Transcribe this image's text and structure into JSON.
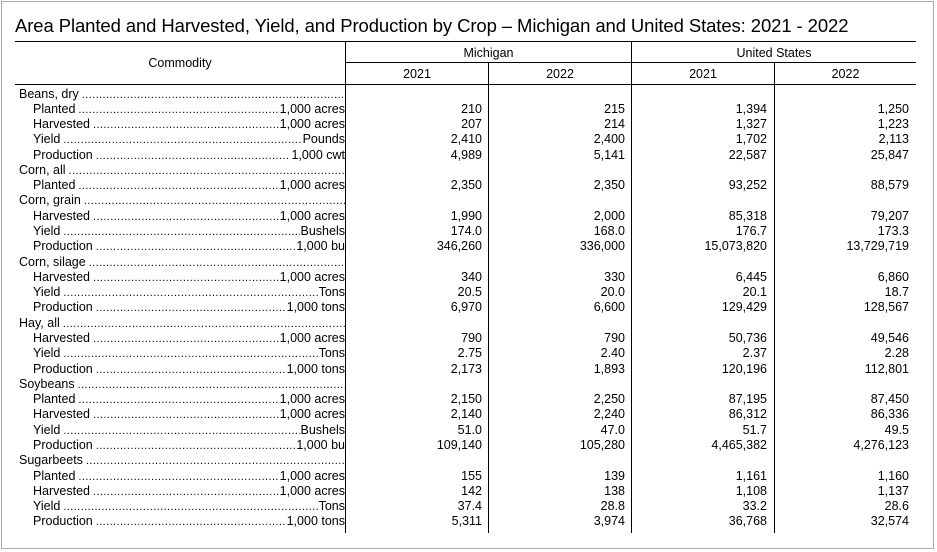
{
  "title": "Area Planted and Harvested, Yield, and Production by Crop –  Michigan and United States: 2021 - 2022",
  "header": {
    "commodity": "Commodity",
    "groups": [
      "Michigan",
      "United States"
    ],
    "years": [
      "2021",
      "2022",
      "2021",
      "2022"
    ]
  },
  "rows": [
    {
      "type": "group",
      "label": "Beans, dry"
    },
    {
      "type": "item",
      "label": "Planted",
      "unit": "1,000 acres",
      "values": [
        "210",
        "215",
        "1,394",
        "1,250"
      ]
    },
    {
      "type": "item",
      "label": "Harvested",
      "unit": "1,000 acres",
      "values": [
        "207",
        "214",
        "1,327",
        "1,223"
      ]
    },
    {
      "type": "item",
      "label": "Yield",
      "unit": "Pounds",
      "values": [
        "2,410",
        "2,400",
        "1,702",
        "2,113"
      ]
    },
    {
      "type": "item",
      "label": "Production",
      "unit": "1,000 cwt",
      "values": [
        "4,989",
        "5,141",
        "22,587",
        "25,847"
      ]
    },
    {
      "type": "group",
      "label": "Corn, all"
    },
    {
      "type": "item",
      "label": "Planted",
      "unit": "1,000 acres",
      "values": [
        "2,350",
        "2,350",
        "93,252",
        "88,579"
      ]
    },
    {
      "type": "group",
      "label": "Corn, grain"
    },
    {
      "type": "item",
      "label": "Harvested",
      "unit": "1,000 acres",
      "values": [
        "1,990",
        "2,000",
        "85,318",
        "79,207"
      ]
    },
    {
      "type": "item",
      "label": "Yield",
      "unit": "Bushels",
      "values": [
        "174.0",
        "168.0",
        "176.7",
        "173.3"
      ]
    },
    {
      "type": "item",
      "label": "Production",
      "unit": "1,000 bu",
      "values": [
        "346,260",
        "336,000",
        "15,073,820",
        "13,729,719"
      ]
    },
    {
      "type": "group",
      "label": "Corn, silage"
    },
    {
      "type": "item",
      "label": "Harvested",
      "unit": "1,000 acres",
      "values": [
        "340",
        "330",
        "6,445",
        "6,860"
      ]
    },
    {
      "type": "item",
      "label": "Yield",
      "unit": "Tons",
      "values": [
        "20.5",
        "20.0",
        "20.1",
        "18.7"
      ]
    },
    {
      "type": "item",
      "label": "Production",
      "unit": "1,000 tons",
      "values": [
        "6,970",
        "6,600",
        "129,429",
        "128,567"
      ]
    },
    {
      "type": "group",
      "label": "Hay, all"
    },
    {
      "type": "item",
      "label": "Harvested",
      "unit": "1,000 acres",
      "values": [
        "790",
        "790",
        "50,736",
        "49,546"
      ]
    },
    {
      "type": "item",
      "label": "Yield",
      "unit": "Tons",
      "values": [
        "2.75",
        "2.40",
        "2.37",
        "2.28"
      ]
    },
    {
      "type": "item",
      "label": "Production",
      "unit": "1,000 tons",
      "values": [
        "2,173",
        "1,893",
        "120,196",
        "112,801"
      ]
    },
    {
      "type": "group",
      "label": "Soybeans"
    },
    {
      "type": "item",
      "label": "Planted",
      "unit": "1,000 acres",
      "values": [
        "2,150",
        "2,250",
        "87,195",
        "87,450"
      ]
    },
    {
      "type": "item",
      "label": "Harvested",
      "unit": "1,000 acres",
      "values": [
        "2,140",
        "2,240",
        "86,312",
        "86,336"
      ]
    },
    {
      "type": "item",
      "label": "Yield",
      "unit": "Bushels",
      "values": [
        "51.0",
        "47.0",
        "51.7",
        "49.5"
      ]
    },
    {
      "type": "item",
      "label": "Production",
      "unit": "1,000 bu",
      "values": [
        "109,140",
        "105,280",
        "4,465,382",
        "4,276,123"
      ]
    },
    {
      "type": "group",
      "label": "Sugarbeets"
    },
    {
      "type": "item",
      "label": "Planted",
      "unit": "1,000 acres",
      "values": [
        "155",
        "139",
        "1,161",
        "1,160"
      ]
    },
    {
      "type": "item",
      "label": "Harvested",
      "unit": "1,000 acres",
      "values": [
        "142",
        "138",
        "1,108",
        "1,137"
      ]
    },
    {
      "type": "item",
      "label": "Yield",
      "unit": "Tons",
      "values": [
        "37.4",
        "28.8",
        "33.2",
        "28.6"
      ]
    },
    {
      "type": "item",
      "label": "Production",
      "unit": "1,000 tons",
      "values": [
        "5,311",
        "3,974",
        "36,768",
        "32,574"
      ]
    }
  ]
}
